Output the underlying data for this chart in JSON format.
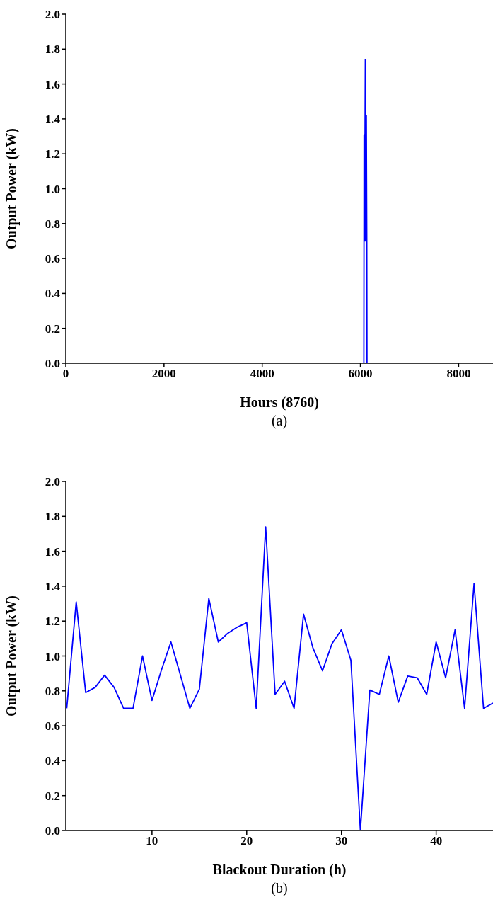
{
  "chart_data": [
    {
      "type": "line",
      "xlabel": "Hours (8760)",
      "ylabel": "Output Power (kW)",
      "annotations": [
        "(a)"
      ],
      "x": [
        0,
        6070,
        6075,
        6085,
        6100,
        6110,
        6120,
        6130,
        6134,
        8700
      ],
      "series": [
        {
          "color": "#0000ff",
          "values": [
            0,
            0,
            1.31,
            0.7,
            1.74,
            0.7,
            1.42,
            0.7,
            0,
            0
          ]
        }
      ],
      "xlim": [
        0,
        8700
      ],
      "xticks": [
        0,
        2000,
        4000,
        6000,
        8000
      ],
      "ylim": [
        0,
        2
      ],
      "yticks": [
        {
          "value": 0,
          "label": "0.0"
        },
        0.2,
        0.4,
        0.6,
        0.8,
        {
          "value": 1,
          "label": "1.0"
        },
        1.2,
        1.4,
        1.6,
        1.8,
        {
          "value": 2,
          "label": "2.0"
        }
      ],
      "grid": false,
      "legend": false,
      "marker": "none",
      "line_style": "solid"
    },
    {
      "type": "line",
      "xlabel": "Blackout Duration (h)",
      "ylabel": "Output Power (kW)",
      "annotations": [
        "(b)"
      ],
      "x": [
        1,
        2,
        3,
        4,
        5,
        6,
        7,
        8,
        9,
        10,
        11,
        12,
        13,
        14,
        15,
        16,
        17,
        18,
        19,
        20,
        21,
        22,
        23,
        24,
        25,
        26,
        27,
        28,
        29,
        30,
        31,
        32,
        33,
        34,
        35,
        36,
        37,
        38,
        39,
        40,
        41,
        42,
        43,
        44,
        45,
        46
      ],
      "series": [
        {
          "color": "#0000ff",
          "values": [
            0.7,
            1.31,
            0.79,
            0.82,
            0.89,
            0.82,
            0.7,
            0.7,
            1.0,
            0.745,
            0.92,
            1.08,
            0.89,
            0.7,
            0.81,
            1.33,
            1.08,
            1.13,
            1.165,
            1.19,
            0.7,
            1.74,
            0.78,
            0.855,
            0.7,
            1.24,
            1.045,
            0.915,
            1.07,
            1.15,
            0.975,
            0.0,
            0.805,
            0.78,
            1.0,
            0.735,
            0.885,
            0.875,
            0.78,
            1.08,
            0.875,
            1.15,
            0.7,
            1.415,
            0.7,
            0.73
          ]
        }
      ],
      "xlim": [
        0.9,
        46
      ],
      "xticks": [
        10,
        20,
        30,
        40
      ],
      "ylim": [
        0,
        2
      ],
      "yticks": [
        {
          "value": 0,
          "label": "0.0"
        },
        0.2,
        0.4,
        0.6,
        0.8,
        {
          "value": 1,
          "label": "1.0"
        },
        1.2,
        1.4,
        1.6,
        1.8,
        {
          "value": 2,
          "label": "2.0"
        }
      ],
      "grid": false,
      "legend": false,
      "marker": "none",
      "line_style": "solid"
    }
  ]
}
